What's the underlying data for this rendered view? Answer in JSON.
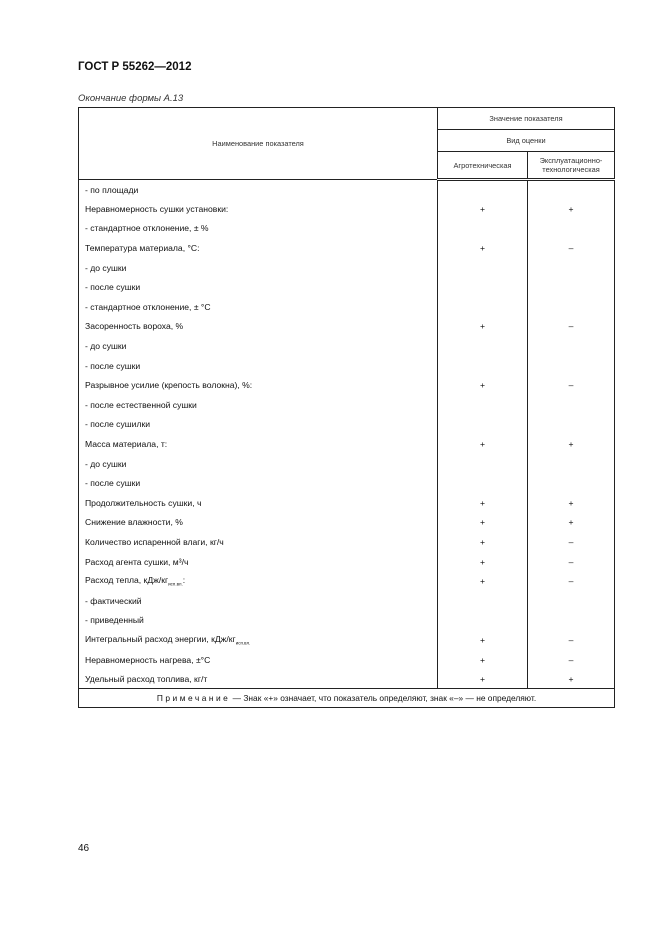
{
  "header": "ГОСТ Р 55262—2012",
  "caption": "Окончание формы А.13",
  "table": {
    "col_name": "Наименование показателя",
    "col_value": "Значение показателя",
    "col_kind": "Вид оценки",
    "col_agro": "Агротехническая",
    "col_expl": "Эксплуатационно-технологическая",
    "rows": [
      {
        "name": "- по площади",
        "sub": "",
        "a": "",
        "e": ""
      },
      {
        "name": "Неравномерность сушки установки:",
        "sub": "",
        "a": "+",
        "e": "+"
      },
      {
        "name": "- стандартное отклонение, ± %",
        "sub": "",
        "a": "",
        "e": ""
      },
      {
        "name": "Температура материала, °С:",
        "sub": "",
        "a": "+",
        "e": "–"
      },
      {
        "name": "- до сушки",
        "sub": "",
        "a": "",
        "e": ""
      },
      {
        "name": "- после сушки",
        "sub": "",
        "a": "",
        "e": ""
      },
      {
        "name": "- стандартное отклонение, ± °С",
        "sub": "",
        "a": "",
        "e": ""
      },
      {
        "name": "Засоренность вороха, %",
        "sub": "",
        "a": "+",
        "e": "–"
      },
      {
        "name": "- до сушки",
        "sub": "",
        "a": "",
        "e": ""
      },
      {
        "name": "- после сушки",
        "sub": "",
        "a": "",
        "e": ""
      },
      {
        "name": "Разрывное усилие (крепость волокна), %:",
        "sub": "",
        "a": "+",
        "e": "–"
      },
      {
        "name": "- после естественной сушки",
        "sub": "",
        "a": "",
        "e": ""
      },
      {
        "name": "- после сушилки",
        "sub": "",
        "a": "",
        "e": ""
      },
      {
        "name": "Масса материала, т:",
        "sub": "",
        "a": "+",
        "e": "+"
      },
      {
        "name": "- до сушки",
        "sub": "",
        "a": "",
        "e": ""
      },
      {
        "name": "- после сушки",
        "sub": "",
        "a": "",
        "e": ""
      },
      {
        "name": "Продолжительность сушки, ч",
        "sub": "",
        "a": "+",
        "e": "+"
      },
      {
        "name": "Снижение влажности, %",
        "sub": "",
        "a": "+",
        "e": "+"
      },
      {
        "name": "Количество испаренной влаги, кг/ч",
        "sub": "",
        "a": "+",
        "e": "–"
      },
      {
        "name": "Расход агента сушки, м³/ч",
        "sub": "",
        "a": "+",
        "e": "–"
      },
      {
        "name": "Расход тепла, кДж/кг",
        "sub": "исп.вл.",
        "tail": ":",
        "a": "+",
        "e": "–"
      },
      {
        "name": "- фактический",
        "sub": "",
        "a": "",
        "e": ""
      },
      {
        "name": "- приведенный",
        "sub": "",
        "a": "",
        "e": ""
      },
      {
        "name": "Интегральный расход энергии, кДж/кг",
        "sub": "исп.вл.",
        "a": "+",
        "e": "–"
      },
      {
        "name": "Неравномерность нагрева, ±°С",
        "sub": "",
        "a": "+",
        "e": "–"
      },
      {
        "name": "Удельный расход топлива, кг/т",
        "sub": "",
        "a": "+",
        "e": "+"
      }
    ],
    "note_label": "Примечание",
    "note_text": " — Знак «+» означает, что показатель определяют, знак «–» — не определяют."
  },
  "page_number": "46"
}
